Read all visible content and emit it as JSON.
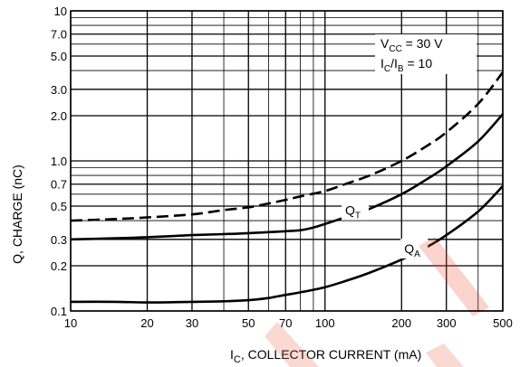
{
  "chart_data": {
    "type": "line",
    "xlabel": {
      "main": "I",
      "sub": "C",
      "rest": ", COLLECTOR CURRENT (mA)"
    },
    "ylabel": "Q, CHARGE (nC)",
    "x_scale": "log",
    "y_scale": "log",
    "xlim": [
      10,
      500
    ],
    "ylim": [
      0.1,
      10
    ],
    "grid": true,
    "x_ticks": [
      10,
      20,
      30,
      50,
      70,
      100,
      200,
      300,
      500
    ],
    "x_tick_labels": [
      "10",
      "20",
      "30",
      "50",
      "70",
      "100",
      "200",
      "300",
      "500"
    ],
    "y_ticks": [
      0.1,
      0.2,
      0.3,
      0.5,
      0.7,
      1.0,
      2.0,
      3.0,
      5.0,
      7.0,
      10
    ],
    "y_tick_labels": [
      "0.1",
      "0.2",
      "0.3",
      "0.5",
      "0.7",
      "1.0",
      "2.0",
      "3.0",
      "5.0",
      "7.0",
      "10"
    ],
    "conditions": [
      {
        "main": "V",
        "sub": "CC",
        "rest": " = 30 V"
      },
      {
        "main": "I",
        "sub": "C",
        "mid": "/I",
        "sub2": "B",
        "rest": " = 10"
      }
    ],
    "series": [
      {
        "name": "Q_T",
        "style": "solid",
        "x": [
          10,
          15,
          20,
          30,
          40,
          50,
          60,
          70,
          80,
          90,
          100,
          120,
          150,
          200,
          250,
          300,
          400,
          500
        ],
        "y": [
          0.3,
          0.305,
          0.31,
          0.32,
          0.325,
          0.33,
          0.335,
          0.34,
          0.345,
          0.36,
          0.38,
          0.42,
          0.48,
          0.6,
          0.75,
          0.92,
          1.35,
          2.05
        ]
      },
      {
        "name": "",
        "style": "dashed",
        "x": [
          10,
          15,
          20,
          30,
          40,
          50,
          60,
          70,
          80,
          100,
          120,
          150,
          200,
          250,
          300,
          400,
          500
        ],
        "y": [
          0.4,
          0.41,
          0.42,
          0.44,
          0.47,
          0.49,
          0.52,
          0.55,
          0.58,
          0.63,
          0.7,
          0.8,
          1.0,
          1.25,
          1.55,
          2.4,
          3.9
        ]
      },
      {
        "name": "Q_A",
        "style": "solid",
        "x": [
          10,
          15,
          20,
          30,
          40,
          50,
          60,
          70,
          80,
          100,
          120,
          150,
          200,
          250,
          300,
          400,
          500
        ],
        "y": [
          0.115,
          0.115,
          0.114,
          0.115,
          0.116,
          0.118,
          0.122,
          0.128,
          0.133,
          0.144,
          0.158,
          0.18,
          0.22,
          0.265,
          0.32,
          0.46,
          0.68
        ]
      }
    ],
    "curve_labels": [
      {
        "main": "Q",
        "sub": "T",
        "x": 120,
        "y": 0.45
      },
      {
        "main": "Q",
        "sub": "A",
        "x": 205,
        "y": 0.25
      }
    ]
  }
}
